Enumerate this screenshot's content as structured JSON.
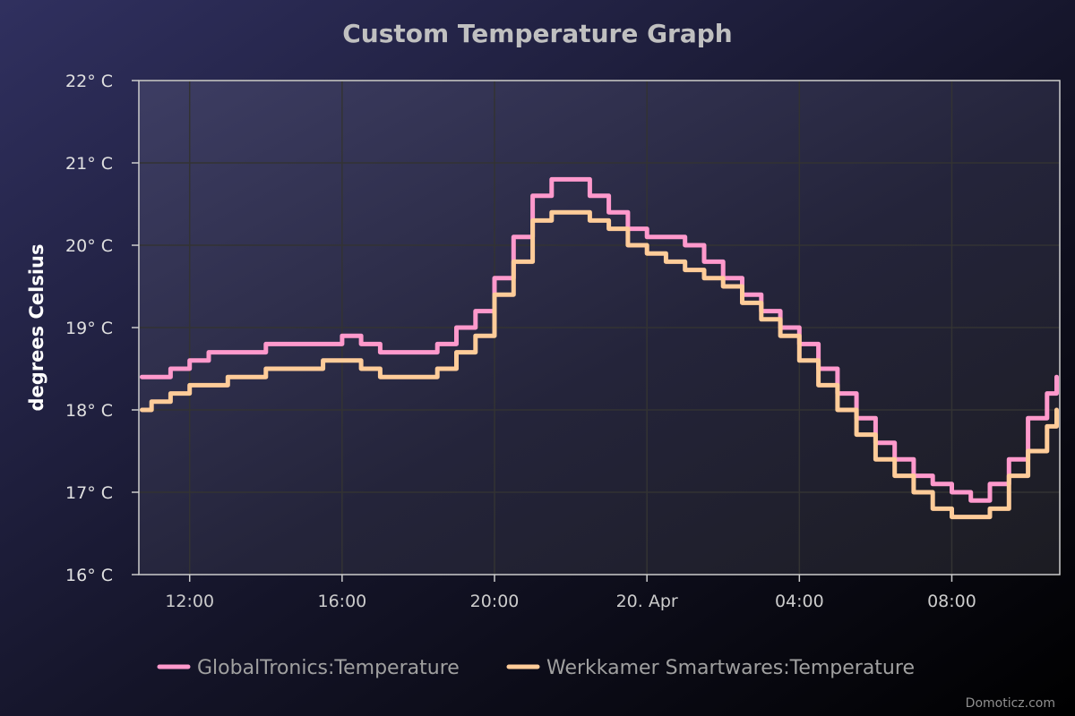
{
  "chart_data": {
    "type": "line",
    "title": "Custom Temperature Graph",
    "xlabel": "",
    "ylabel": "degrees Celsius",
    "ylim": [
      16,
      22
    ],
    "y_ticks": [
      16,
      17,
      18,
      19,
      20,
      21,
      22
    ],
    "y_tick_labels": [
      "16° C",
      "17° C",
      "18° C",
      "19° C",
      "20° C",
      "21° C",
      "22° C"
    ],
    "xlim": [
      "2024-04-19T10:40",
      "2024-04-20T10:50"
    ],
    "x_ticks": [
      "2024-04-19T12:00",
      "2024-04-19T16:00",
      "2024-04-19T20:00",
      "2024-04-20T00:00",
      "2024-04-20T04:00",
      "2024-04-20T08:00"
    ],
    "x_tick_labels": [
      "12:00",
      "16:00",
      "20:00",
      "20. Apr",
      "04:00",
      "08:00"
    ],
    "grid": true,
    "legend": "bottom-center",
    "series": [
      {
        "name": "GlobalTronics:Temperature",
        "color": "#ff99cc",
        "x": [
          "2024-04-19T10:45",
          "2024-04-19T11:00",
          "2024-04-19T11:30",
          "2024-04-19T12:00",
          "2024-04-19T12:30",
          "2024-04-19T13:00",
          "2024-04-19T13:30",
          "2024-04-19T14:00",
          "2024-04-19T15:00",
          "2024-04-19T15:30",
          "2024-04-19T16:00",
          "2024-04-19T16:30",
          "2024-04-19T17:00",
          "2024-04-19T17:30",
          "2024-04-19T18:00",
          "2024-04-19T18:30",
          "2024-04-19T19:00",
          "2024-04-19T19:30",
          "2024-04-19T20:00",
          "2024-04-19T20:30",
          "2024-04-19T21:00",
          "2024-04-19T21:30",
          "2024-04-19T22:00",
          "2024-04-19T22:30",
          "2024-04-19T23:00",
          "2024-04-19T23:30",
          "2024-04-20T00:00",
          "2024-04-20T00:30",
          "2024-04-20T01:00",
          "2024-04-20T01:30",
          "2024-04-20T02:00",
          "2024-04-20T02:30",
          "2024-04-20T03:00",
          "2024-04-20T03:30",
          "2024-04-20T04:00",
          "2024-04-20T04:30",
          "2024-04-20T05:00",
          "2024-04-20T05:30",
          "2024-04-20T06:00",
          "2024-04-20T06:30",
          "2024-04-20T07:00",
          "2024-04-20T07:30",
          "2024-04-20T08:00",
          "2024-04-20T08:30",
          "2024-04-20T09:00",
          "2024-04-20T09:30",
          "2024-04-20T10:00",
          "2024-04-20T10:30",
          "2024-04-20T10:45"
        ],
        "y": [
          18.4,
          18.4,
          18.5,
          18.6,
          18.7,
          18.7,
          18.7,
          18.8,
          18.8,
          18.8,
          18.9,
          18.8,
          18.7,
          18.7,
          18.7,
          18.8,
          19.0,
          19.2,
          19.6,
          20.1,
          20.6,
          20.8,
          20.8,
          20.6,
          20.4,
          20.2,
          20.1,
          20.1,
          20.0,
          19.8,
          19.6,
          19.4,
          19.2,
          19.0,
          18.8,
          18.5,
          18.2,
          17.9,
          17.6,
          17.4,
          17.2,
          17.1,
          17.0,
          16.9,
          17.1,
          17.4,
          17.9,
          18.2,
          18.4
        ]
      },
      {
        "name": "Werkkamer Smartwares:Temperature",
        "color": "#ffcc99",
        "x": [
          "2024-04-19T10:45",
          "2024-04-19T11:00",
          "2024-04-19T11:30",
          "2024-04-19T12:00",
          "2024-04-19T12:30",
          "2024-04-19T13:00",
          "2024-04-19T13:30",
          "2024-04-19T14:00",
          "2024-04-19T15:00",
          "2024-04-19T15:30",
          "2024-04-19T16:00",
          "2024-04-19T16:30",
          "2024-04-19T17:00",
          "2024-04-19T17:30",
          "2024-04-19T18:00",
          "2024-04-19T18:30",
          "2024-04-19T19:00",
          "2024-04-19T19:30",
          "2024-04-19T20:00",
          "2024-04-19T20:30",
          "2024-04-19T21:00",
          "2024-04-19T21:30",
          "2024-04-19T22:00",
          "2024-04-19T22:30",
          "2024-04-19T23:00",
          "2024-04-19T23:30",
          "2024-04-20T00:00",
          "2024-04-20T00:30",
          "2024-04-20T01:00",
          "2024-04-20T01:30",
          "2024-04-20T02:00",
          "2024-04-20T02:30",
          "2024-04-20T03:00",
          "2024-04-20T03:30",
          "2024-04-20T04:00",
          "2024-04-20T04:30",
          "2024-04-20T05:00",
          "2024-04-20T05:30",
          "2024-04-20T06:00",
          "2024-04-20T06:30",
          "2024-04-20T07:00",
          "2024-04-20T07:30",
          "2024-04-20T08:00",
          "2024-04-20T08:30",
          "2024-04-20T09:00",
          "2024-04-20T09:30",
          "2024-04-20T10:00",
          "2024-04-20T10:30",
          "2024-04-20T10:45"
        ],
        "y": [
          18.0,
          18.1,
          18.2,
          18.3,
          18.3,
          18.4,
          18.4,
          18.5,
          18.5,
          18.6,
          18.6,
          18.5,
          18.4,
          18.4,
          18.4,
          18.5,
          18.7,
          18.9,
          19.4,
          19.8,
          20.3,
          20.4,
          20.4,
          20.3,
          20.2,
          20.0,
          19.9,
          19.8,
          19.7,
          19.6,
          19.5,
          19.3,
          19.1,
          18.9,
          18.6,
          18.3,
          18.0,
          17.7,
          17.4,
          17.2,
          17.0,
          16.8,
          16.7,
          16.7,
          16.8,
          17.2,
          17.5,
          17.8,
          18.0
        ]
      }
    ]
  },
  "colors": {
    "title": "#c0c0c0",
    "axis_text": "#e0e0e0",
    "legend_text": "#a0a0a0",
    "grid": "#333333",
    "axis_line": "#cccccc"
  },
  "credits": "Domoticz.com"
}
